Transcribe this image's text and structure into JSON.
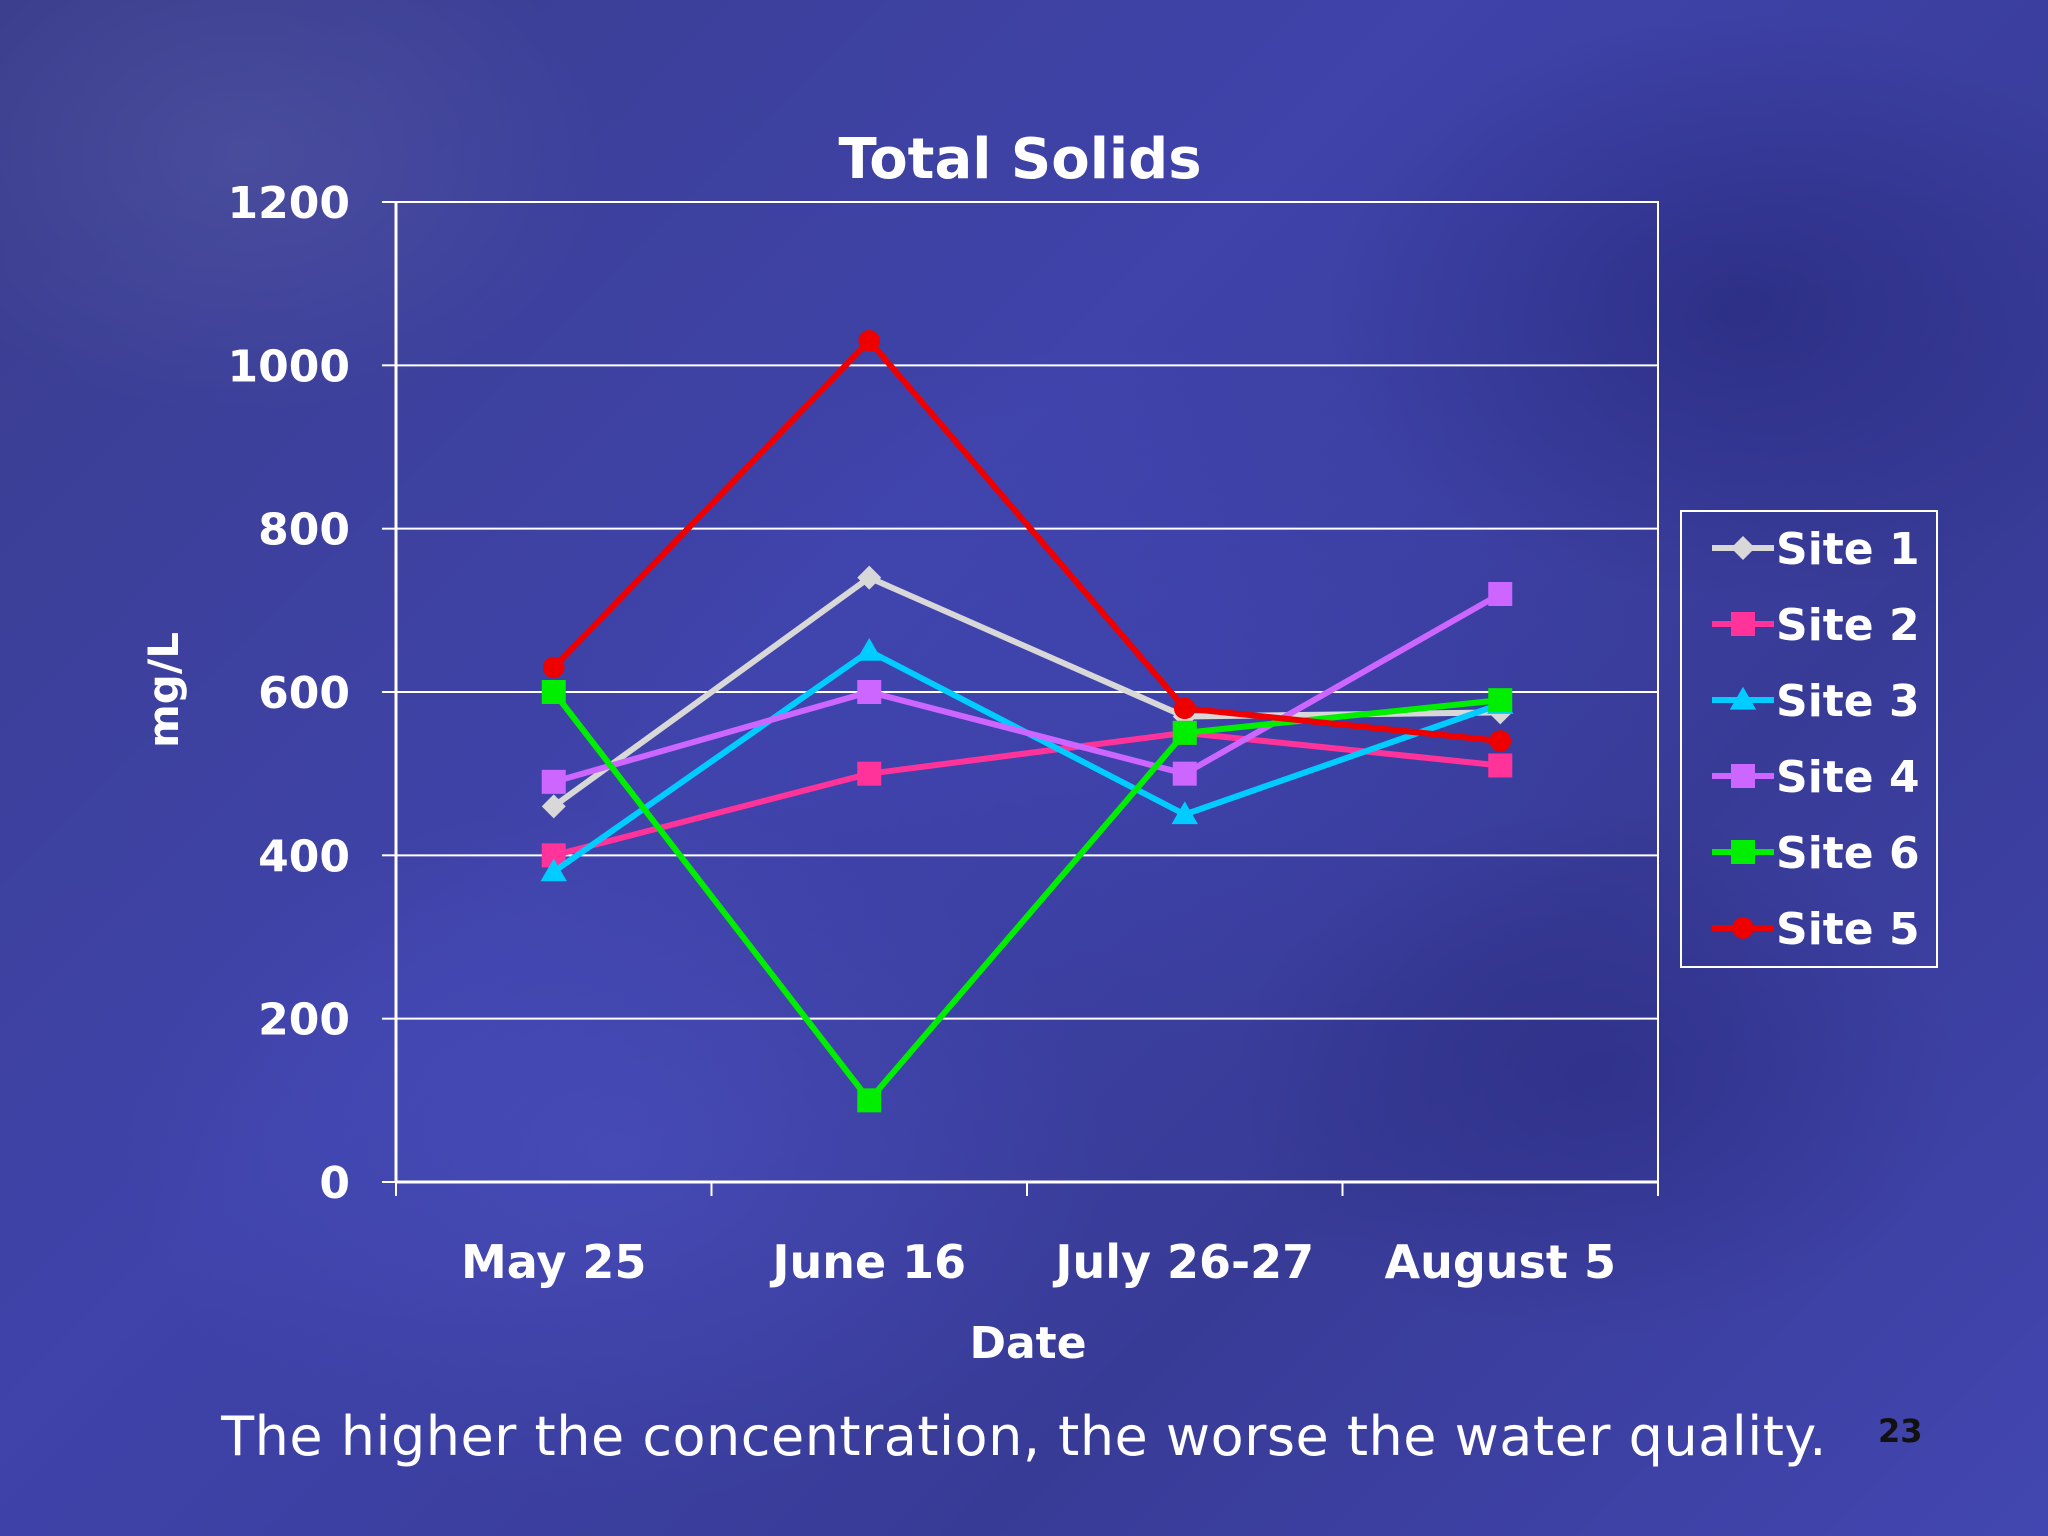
{
  "slide": {
    "caption": "The higher the concentration, the worse the water quality.",
    "page_number": "23"
  },
  "colors": {
    "background": "#3c3f9a",
    "text": "#ffffff",
    "gridline": "#ffffff"
  },
  "chart_data": {
    "type": "line",
    "title": "Total Solids",
    "xlabel": "Date",
    "ylabel": "mg/L",
    "categories": [
      "May 25",
      "June 16",
      "July 26-27",
      "August 5"
    ],
    "ylim": [
      0,
      1200
    ],
    "yticks": [
      0,
      200,
      400,
      600,
      800,
      1000,
      1200
    ],
    "grid": true,
    "legend_position": "right",
    "series": [
      {
        "name": "Site 1",
        "color": "#d8d8d8",
        "marker": "diamond",
        "values": [
          460,
          740,
          570,
          575
        ]
      },
      {
        "name": "Site 2",
        "color": "#ff3399",
        "marker": "square",
        "values": [
          400,
          500,
          550,
          510
        ]
      },
      {
        "name": "Site 3",
        "color": "#00ccff",
        "marker": "triangle",
        "values": [
          380,
          650,
          450,
          585
        ]
      },
      {
        "name": "Site 4",
        "color": "#cc66ff",
        "marker": "square",
        "values": [
          490,
          600,
          500,
          720
        ]
      },
      {
        "name": "Site 6",
        "color": "#00ee00",
        "marker": "square",
        "values": [
          600,
          100,
          550,
          590
        ]
      },
      {
        "name": "Site 5",
        "color": "#ee0000",
        "marker": "circle",
        "values": [
          630,
          1030,
          580,
          540
        ]
      }
    ]
  }
}
